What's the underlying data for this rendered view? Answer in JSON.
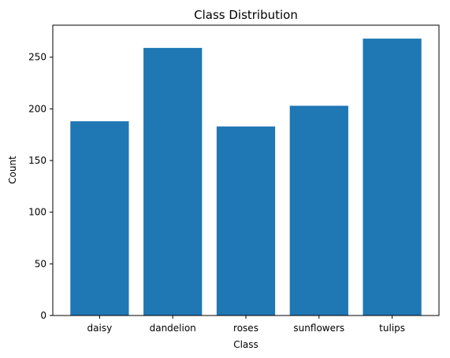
{
  "chart_data": {
    "type": "bar",
    "title": "Class Distribution",
    "xlabel": "Class",
    "ylabel": "Count",
    "categories": [
      "daisy",
      "dandelion",
      "roses",
      "sunflowers",
      "tulips"
    ],
    "values": [
      188,
      259,
      183,
      203,
      268
    ],
    "ylim": [
      0,
      281
    ],
    "yticks": [
      0,
      50,
      100,
      150,
      200,
      250
    ],
    "grid": false,
    "bar_color": "#1f77b4"
  }
}
